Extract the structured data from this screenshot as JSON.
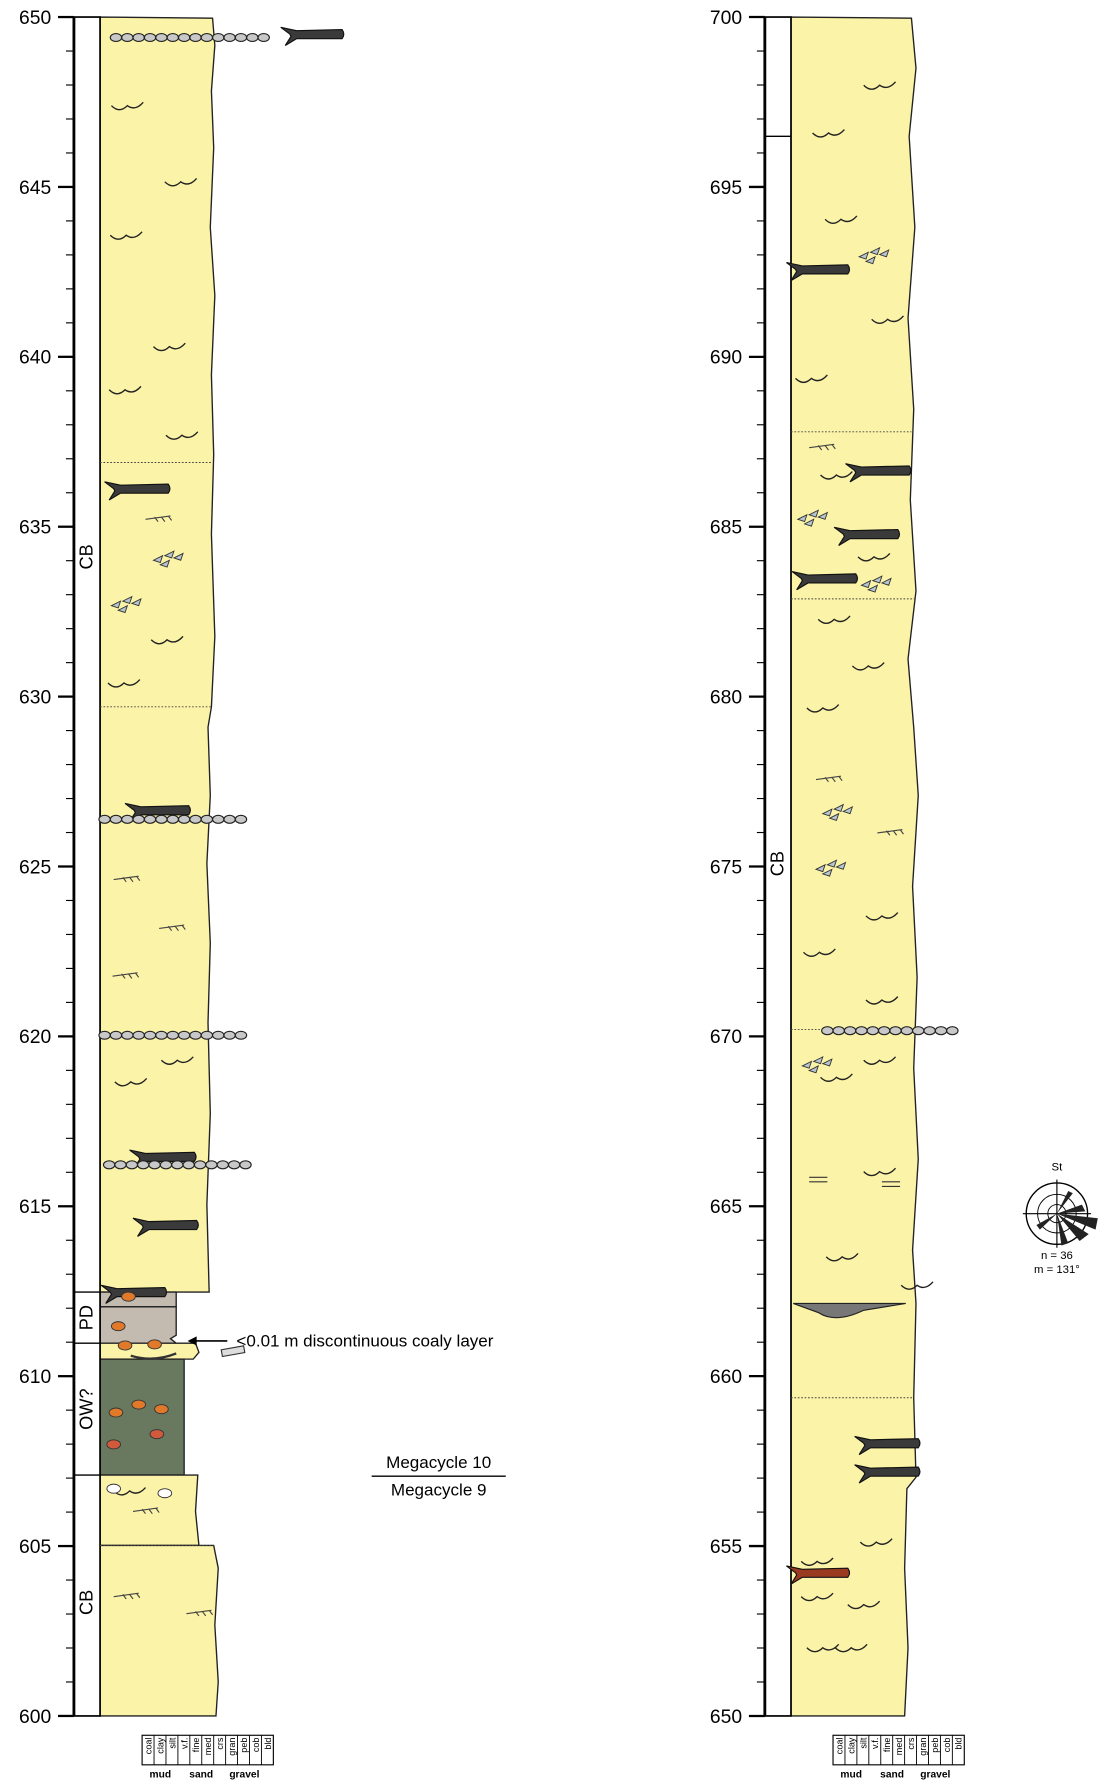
{
  "columns": [
    {
      "ticks": [
        600,
        605,
        610,
        615,
        620,
        625,
        630,
        635,
        640,
        645,
        650
      ],
      "facies": [
        "CB",
        "OW?",
        "PD",
        "CB"
      ]
    },
    {
      "ticks": [
        650,
        655,
        660,
        665,
        670,
        675,
        680,
        685,
        690,
        695,
        700
      ],
      "facies": [
        "CB"
      ]
    }
  ],
  "annotation": "<0.01 m discontinuous coaly layer",
  "megacycle": {
    "upper": "Megacycle 10",
    "lower": "Megacycle 9"
  },
  "rose": {
    "label": "St",
    "n": "n = 36",
    "mean": "m = 131°"
  },
  "grain_scale": {
    "classes": [
      "coal",
      "clay",
      "silt",
      "v.f.",
      "fine",
      "med",
      "crs",
      "gran",
      "peb",
      "cob",
      "bld"
    ],
    "groups": [
      "mud",
      "sand",
      "gravel"
    ]
  }
}
